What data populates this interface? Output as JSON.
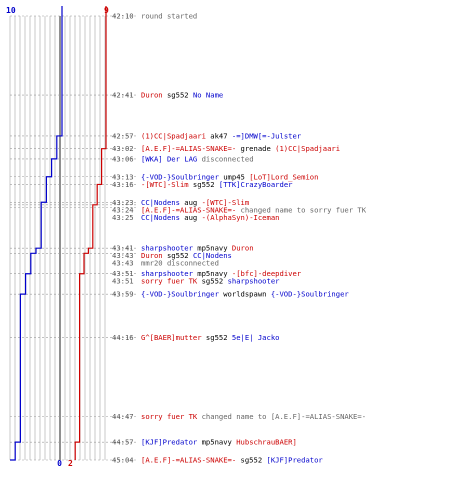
{
  "chart_data": {
    "type": "line",
    "score": {
      "start_blue": "10",
      "start_red": "9",
      "end_blue": "0",
      "end_red": "2"
    },
    "series": [
      {
        "color": "#0000cc",
        "points": [
          [
            "42:10",
            10
          ],
          [
            "42:41",
            10
          ],
          [
            "42:57",
            9
          ],
          [
            "43:06",
            8
          ],
          [
            "43:13",
            7
          ],
          [
            "43:16",
            7
          ],
          [
            "43:23",
            6
          ],
          [
            "43:41",
            5
          ],
          [
            "43:43",
            4
          ],
          [
            "43:51",
            3
          ],
          [
            "43:59",
            2
          ],
          [
            "44:16",
            2
          ],
          [
            "44:57",
            1
          ],
          [
            "45:04",
            0
          ]
        ]
      },
      {
        "color": "#cc0000",
        "points": [
          [
            "42:10",
            9
          ],
          [
            "42:41",
            9
          ],
          [
            "42:57",
            9
          ],
          [
            "43:02",
            8
          ],
          [
            "43:13",
            8
          ],
          [
            "43:16",
            7
          ],
          [
            "43:24",
            6
          ],
          [
            "43:41",
            5
          ],
          [
            "43:43",
            4
          ],
          [
            "43:51",
            3
          ],
          [
            "44:16",
            3
          ],
          [
            "44:57",
            2
          ],
          [
            "45:04",
            2
          ]
        ]
      }
    ],
    "events": [
      {
        "time": "42:10",
        "parts": [
          {
            "text": "round started",
            "color": "#666666"
          }
        ]
      },
      {
        "time": "42:41",
        "parts": [
          {
            "text": "Duron",
            "color": "#cc0000"
          },
          {
            "text": " sg552 ",
            "color": "#000000"
          },
          {
            "text": "No Name",
            "color": "#0000cc"
          }
        ]
      },
      {
        "time": "42:57",
        "parts": [
          {
            "text": "(1)CC|Spadjaari",
            "color": "#cc0000"
          },
          {
            "text": " ak47 ",
            "color": "#000000"
          },
          {
            "text": "-=]DMW[=-Julster",
            "color": "#0000cc"
          }
        ]
      },
      {
        "time": "43:02",
        "parts": [
          {
            "text": "[A.E.F]-=ALIAS-SNAKE=-",
            "color": "#cc0000"
          },
          {
            "text": " grenade ",
            "color": "#000000"
          },
          {
            "text": "(1)CC|Spadjaari",
            "color": "#cc0000"
          }
        ]
      },
      {
        "time": "43:06",
        "parts": [
          {
            "text": "[WKA] Der LAG",
            "color": "#0000cc"
          },
          {
            "text": " disconnected",
            "color": "#666666"
          }
        ]
      },
      {
        "time": "43:13",
        "parts": [
          {
            "text": "{-VOD-}Soulbringer",
            "color": "#0000cc"
          },
          {
            "text": " ump45 ",
            "color": "#000000"
          },
          {
            "text": "[LoT]Lord_Semion",
            "color": "#cc0000"
          }
        ]
      },
      {
        "time": "43:16",
        "parts": [
          {
            "text": "-[WTC]-Slim",
            "color": "#cc0000"
          },
          {
            "text": " sg552 ",
            "color": "#000000"
          },
          {
            "text": "[TTK]CrazyBoarder",
            "color": "#0000cc"
          }
        ]
      },
      {
        "time": "43:23",
        "parts": [
          {
            "text": "CC|Nodens",
            "color": "#0000cc"
          },
          {
            "text": " aug ",
            "color": "#000000"
          },
          {
            "text": "-[WTC]-Slim",
            "color": "#cc0000"
          }
        ]
      },
      {
        "time": "43:24",
        "parts": [
          {
            "text": "[A.E.F]-=ALIAS-SNAKE=-",
            "color": "#cc0000"
          },
          {
            "text": " changed name to sorry fuer TK",
            "color": "#666666"
          }
        ]
      },
      {
        "time": "43:25",
        "parts": [
          {
            "text": "CC|Nodens",
            "color": "#0000cc"
          },
          {
            "text": " aug ",
            "color": "#000000"
          },
          {
            "text": "-(AlphaSyn)-Iceman",
            "color": "#cc0000"
          }
        ]
      },
      {
        "time": "43:41",
        "parts": [
          {
            "text": "sharpshooter",
            "color": "#0000cc"
          },
          {
            "text": " mp5navy ",
            "color": "#000000"
          },
          {
            "text": "Duron",
            "color": "#cc0000"
          }
        ]
      },
      {
        "time": "43:43",
        "parts": [
          {
            "text": "Duron",
            "color": "#cc0000"
          },
          {
            "text": " sg552 ",
            "color": "#000000"
          },
          {
            "text": "CC|Nodens",
            "color": "#0000cc"
          }
        ]
      },
      {
        "time": "43:43",
        "parts": [
          {
            "text": "mmr20 disconnected",
            "color": "#666666"
          }
        ]
      },
      {
        "time": "43:51",
        "parts": [
          {
            "text": "sharpshooter",
            "color": "#0000cc"
          },
          {
            "text": " mp5navy ",
            "color": "#000000"
          },
          {
            "text": "-[bfc]-deepdiver",
            "color": "#cc0000"
          }
        ]
      },
      {
        "time": "43:51",
        "parts": [
          {
            "text": "sorry fuer TK",
            "color": "#cc0000"
          },
          {
            "text": " sg552 ",
            "color": "#000000"
          },
          {
            "text": "sharpshooter",
            "color": "#0000cc"
          }
        ]
      },
      {
        "time": "43:59",
        "parts": [
          {
            "text": "{-VOD-}Soulbringer",
            "color": "#0000cc"
          },
          {
            "text": " worldspawn ",
            "color": "#000000"
          },
          {
            "text": "{-VOD-}Soulbringer",
            "color": "#0000cc"
          }
        ]
      },
      {
        "time": "44:16",
        "parts": [
          {
            "text": "G^[BAER]mutter",
            "color": "#cc0000"
          },
          {
            "text": " sg552 ",
            "color": "#000000"
          },
          {
            "text": "5e|E| Jacko",
            "color": "#0000cc"
          }
        ]
      },
      {
        "time": "44:47",
        "parts": [
          {
            "text": "sorry fuer TK",
            "color": "#cc0000"
          },
          {
            "text": " changed name to [A.E.F]-=ALIAS-SNAKE=-",
            "color": "#666666"
          }
        ]
      },
      {
        "time": "44:57",
        "parts": [
          {
            "text": "[KJF]Predator",
            "color": "#0000cc"
          },
          {
            "text": " mp5navy ",
            "color": "#000000"
          },
          {
            "text": "HubschrauBAER]",
            "color": "#cc0000"
          }
        ]
      },
      {
        "time": "45:04",
        "parts": [
          {
            "text": "[A.E.F]-=ALIAS-SNAKE=-",
            "color": "#cc0000"
          },
          {
            "text": " sg552 ",
            "color": "#000000"
          },
          {
            "text": "[KJF]Predator",
            "color": "#0000cc"
          }
        ]
      }
    ]
  }
}
